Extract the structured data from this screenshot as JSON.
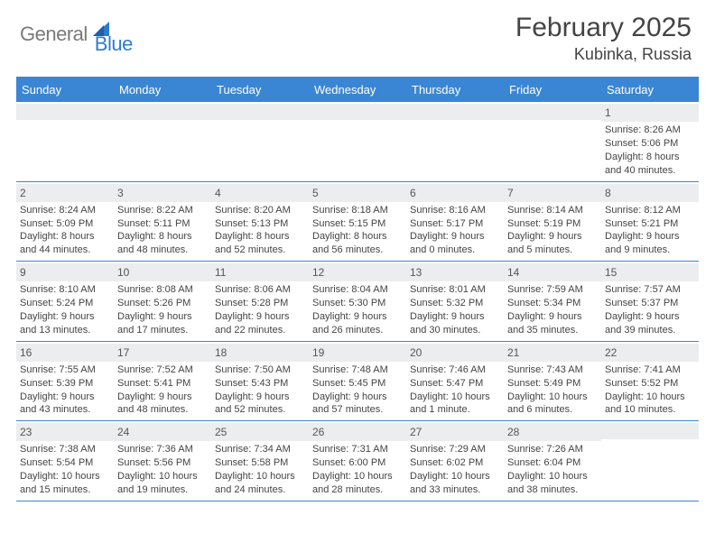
{
  "brand": {
    "part1": "General",
    "part2": "Blue"
  },
  "title": "February 2025",
  "location": "Kubinka, Russia",
  "header_bg": "#3a86d4",
  "days": [
    "Sunday",
    "Monday",
    "Tuesday",
    "Wednesday",
    "Thursday",
    "Friday",
    "Saturday"
  ],
  "weeks": [
    [
      {
        "n": "",
        "sr": "",
        "ss": "",
        "dl1": "",
        "dl2": ""
      },
      {
        "n": "",
        "sr": "",
        "ss": "",
        "dl1": "",
        "dl2": ""
      },
      {
        "n": "",
        "sr": "",
        "ss": "",
        "dl1": "",
        "dl2": ""
      },
      {
        "n": "",
        "sr": "",
        "ss": "",
        "dl1": "",
        "dl2": ""
      },
      {
        "n": "",
        "sr": "",
        "ss": "",
        "dl1": "",
        "dl2": ""
      },
      {
        "n": "",
        "sr": "",
        "ss": "",
        "dl1": "",
        "dl2": ""
      },
      {
        "n": "1",
        "sr": "Sunrise: 8:26 AM",
        "ss": "Sunset: 5:06 PM",
        "dl1": "Daylight: 8 hours",
        "dl2": "and 40 minutes."
      }
    ],
    [
      {
        "n": "2",
        "sr": "Sunrise: 8:24 AM",
        "ss": "Sunset: 5:09 PM",
        "dl1": "Daylight: 8 hours",
        "dl2": "and 44 minutes."
      },
      {
        "n": "3",
        "sr": "Sunrise: 8:22 AM",
        "ss": "Sunset: 5:11 PM",
        "dl1": "Daylight: 8 hours",
        "dl2": "and 48 minutes."
      },
      {
        "n": "4",
        "sr": "Sunrise: 8:20 AM",
        "ss": "Sunset: 5:13 PM",
        "dl1": "Daylight: 8 hours",
        "dl2": "and 52 minutes."
      },
      {
        "n": "5",
        "sr": "Sunrise: 8:18 AM",
        "ss": "Sunset: 5:15 PM",
        "dl1": "Daylight: 8 hours",
        "dl2": "and 56 minutes."
      },
      {
        "n": "6",
        "sr": "Sunrise: 8:16 AM",
        "ss": "Sunset: 5:17 PM",
        "dl1": "Daylight: 9 hours",
        "dl2": "and 0 minutes."
      },
      {
        "n": "7",
        "sr": "Sunrise: 8:14 AM",
        "ss": "Sunset: 5:19 PM",
        "dl1": "Daylight: 9 hours",
        "dl2": "and 5 minutes."
      },
      {
        "n": "8",
        "sr": "Sunrise: 8:12 AM",
        "ss": "Sunset: 5:21 PM",
        "dl1": "Daylight: 9 hours",
        "dl2": "and 9 minutes."
      }
    ],
    [
      {
        "n": "9",
        "sr": "Sunrise: 8:10 AM",
        "ss": "Sunset: 5:24 PM",
        "dl1": "Daylight: 9 hours",
        "dl2": "and 13 minutes."
      },
      {
        "n": "10",
        "sr": "Sunrise: 8:08 AM",
        "ss": "Sunset: 5:26 PM",
        "dl1": "Daylight: 9 hours",
        "dl2": "and 17 minutes."
      },
      {
        "n": "11",
        "sr": "Sunrise: 8:06 AM",
        "ss": "Sunset: 5:28 PM",
        "dl1": "Daylight: 9 hours",
        "dl2": "and 22 minutes."
      },
      {
        "n": "12",
        "sr": "Sunrise: 8:04 AM",
        "ss": "Sunset: 5:30 PM",
        "dl1": "Daylight: 9 hours",
        "dl2": "and 26 minutes."
      },
      {
        "n": "13",
        "sr": "Sunrise: 8:01 AM",
        "ss": "Sunset: 5:32 PM",
        "dl1": "Daylight: 9 hours",
        "dl2": "and 30 minutes."
      },
      {
        "n": "14",
        "sr": "Sunrise: 7:59 AM",
        "ss": "Sunset: 5:34 PM",
        "dl1": "Daylight: 9 hours",
        "dl2": "and 35 minutes."
      },
      {
        "n": "15",
        "sr": "Sunrise: 7:57 AM",
        "ss": "Sunset: 5:37 PM",
        "dl1": "Daylight: 9 hours",
        "dl2": "and 39 minutes."
      }
    ],
    [
      {
        "n": "16",
        "sr": "Sunrise: 7:55 AM",
        "ss": "Sunset: 5:39 PM",
        "dl1": "Daylight: 9 hours",
        "dl2": "and 43 minutes."
      },
      {
        "n": "17",
        "sr": "Sunrise: 7:52 AM",
        "ss": "Sunset: 5:41 PM",
        "dl1": "Daylight: 9 hours",
        "dl2": "and 48 minutes."
      },
      {
        "n": "18",
        "sr": "Sunrise: 7:50 AM",
        "ss": "Sunset: 5:43 PM",
        "dl1": "Daylight: 9 hours",
        "dl2": "and 52 minutes."
      },
      {
        "n": "19",
        "sr": "Sunrise: 7:48 AM",
        "ss": "Sunset: 5:45 PM",
        "dl1": "Daylight: 9 hours",
        "dl2": "and 57 minutes."
      },
      {
        "n": "20",
        "sr": "Sunrise: 7:46 AM",
        "ss": "Sunset: 5:47 PM",
        "dl1": "Daylight: 10 hours",
        "dl2": "and 1 minute."
      },
      {
        "n": "21",
        "sr": "Sunrise: 7:43 AM",
        "ss": "Sunset: 5:49 PM",
        "dl1": "Daylight: 10 hours",
        "dl2": "and 6 minutes."
      },
      {
        "n": "22",
        "sr": "Sunrise: 7:41 AM",
        "ss": "Sunset: 5:52 PM",
        "dl1": "Daylight: 10 hours",
        "dl2": "and 10 minutes."
      }
    ],
    [
      {
        "n": "23",
        "sr": "Sunrise: 7:38 AM",
        "ss": "Sunset: 5:54 PM",
        "dl1": "Daylight: 10 hours",
        "dl2": "and 15 minutes."
      },
      {
        "n": "24",
        "sr": "Sunrise: 7:36 AM",
        "ss": "Sunset: 5:56 PM",
        "dl1": "Daylight: 10 hours",
        "dl2": "and 19 minutes."
      },
      {
        "n": "25",
        "sr": "Sunrise: 7:34 AM",
        "ss": "Sunset: 5:58 PM",
        "dl1": "Daylight: 10 hours",
        "dl2": "and 24 minutes."
      },
      {
        "n": "26",
        "sr": "Sunrise: 7:31 AM",
        "ss": "Sunset: 6:00 PM",
        "dl1": "Daylight: 10 hours",
        "dl2": "and 28 minutes."
      },
      {
        "n": "27",
        "sr": "Sunrise: 7:29 AM",
        "ss": "Sunset: 6:02 PM",
        "dl1": "Daylight: 10 hours",
        "dl2": "and 33 minutes."
      },
      {
        "n": "28",
        "sr": "Sunrise: 7:26 AM",
        "ss": "Sunset: 6:04 PM",
        "dl1": "Daylight: 10 hours",
        "dl2": "and 38 minutes."
      },
      {
        "n": "",
        "sr": "",
        "ss": "",
        "dl1": "",
        "dl2": ""
      }
    ]
  ]
}
